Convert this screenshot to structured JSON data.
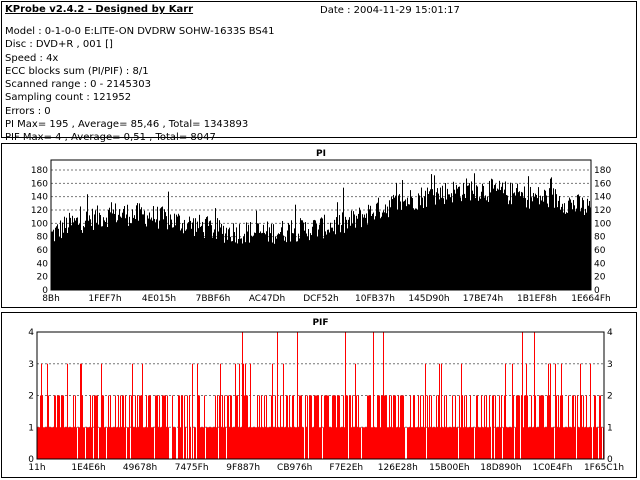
{
  "header": {
    "title": "KProbe v2.4.2 - Designed by Karr",
    "date": "Date : 2004-11-29 15:01:17",
    "lines": [
      "Model : 0-1-0-0 E:LITE-ON DVDRW SOHW-1633S BS41",
      "Disc : DVD+R , 001 []",
      "Speed : 4x",
      "ECC blocks sum (PI/PIF) : 8/1",
      "Scanned range : 0 - 2145303",
      "Sampling count : 121952",
      "Errors : 0",
      "PI Max= 195 , Average= 85,46 , Total= 1343893",
      "PIF Max= 4 , Average= 0,51 , Total= 8047"
    ]
  },
  "chart_data": [
    {
      "type": "bar",
      "title": "PI",
      "color": "#000000",
      "xlabel": "",
      "ylabel": "",
      "ylim": [
        0,
        195
      ],
      "yticks": [
        0,
        20,
        40,
        60,
        80,
        100,
        120,
        140,
        160,
        180
      ],
      "xticks": [
        "8Bh",
        "1FEF7h",
        "4E015h",
        "7BBF6h",
        "AC47Dh",
        "DCF52h",
        "10FB37h",
        "145D90h",
        "17BE74h",
        "1B1EF8h",
        "1E664Fh"
      ],
      "grid": true,
      "profile_x": [
        0,
        0.03,
        0.08,
        0.12,
        0.18,
        0.25,
        0.32,
        0.4,
        0.48,
        0.55,
        0.6,
        0.66,
        0.72,
        0.78,
        0.83,
        0.88,
        0.93,
        0.97,
        1.0
      ],
      "profile_y": [
        82,
        98,
        108,
        115,
        112,
        100,
        88,
        86,
        92,
        100,
        120,
        135,
        145,
        152,
        148,
        140,
        138,
        128,
        122
      ],
      "max": 195,
      "average": 85.46
    },
    {
      "type": "bar",
      "title": "PIF",
      "color": "#ff0000",
      "xlabel": "",
      "ylabel": "",
      "ylim": [
        0,
        4
      ],
      "yticks": [
        0,
        1,
        2,
        3,
        4
      ],
      "xticks": [
        "11h",
        "1E4E6h",
        "49678h",
        "7475Fh",
        "9F887h",
        "CB976h",
        "F7E2Eh",
        "126E28h",
        "15B00Eh",
        "18D890h",
        "1C0E4Fh",
        "1F65C1h"
      ],
      "grid": true,
      "max": 4,
      "average": 0.51
    }
  ]
}
